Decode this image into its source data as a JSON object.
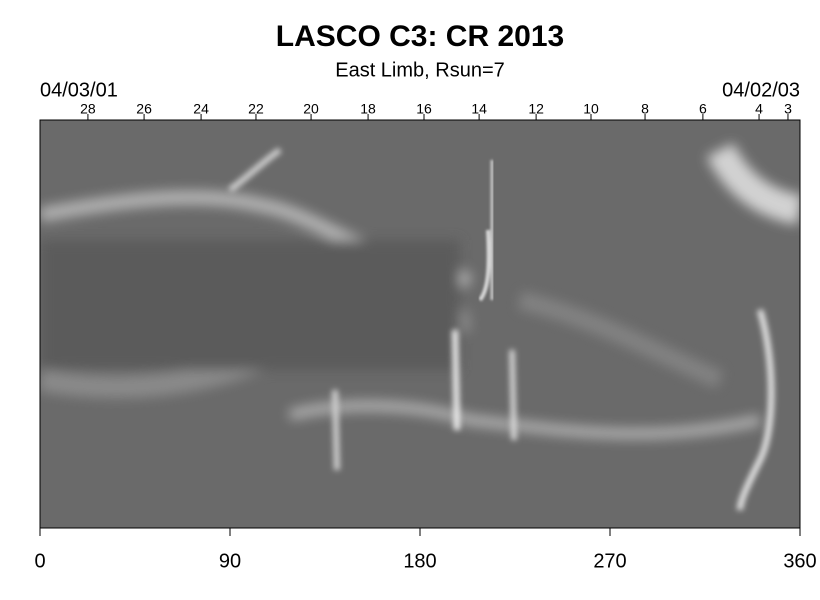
{
  "chart_data": {
    "type": "synoptic-map",
    "title": "LASCO C3: CR 2013",
    "subtitle": "East Limb, Rsun=7",
    "top_left_label": "04/03/01",
    "top_right_label": "04/02/03",
    "xlim": [
      0,
      360
    ],
    "xticks": [
      0,
      90,
      180,
      270,
      360
    ],
    "top_xticks": [
      {
        "value": 22.7,
        "label": "28"
      },
      {
        "value": 49.3,
        "label": "26"
      },
      {
        "value": 76.3,
        "label": "24"
      },
      {
        "value": 102.3,
        "label": "22"
      },
      {
        "value": 128.4,
        "label": "20"
      },
      {
        "value": 155.4,
        "label": "18"
      },
      {
        "value": 181.9,
        "label": "16"
      },
      {
        "value": 208,
        "label": "14"
      },
      {
        "value": 235,
        "label": "12"
      },
      {
        "value": 261,
        "label": "10"
      },
      {
        "value": 286.6,
        "label": "8"
      },
      {
        "value": 314,
        "label": "6"
      },
      {
        "value": 340.6,
        "label": "4"
      },
      {
        "value": 354.3,
        "label": "3"
      }
    ],
    "colormap": "gray"
  }
}
